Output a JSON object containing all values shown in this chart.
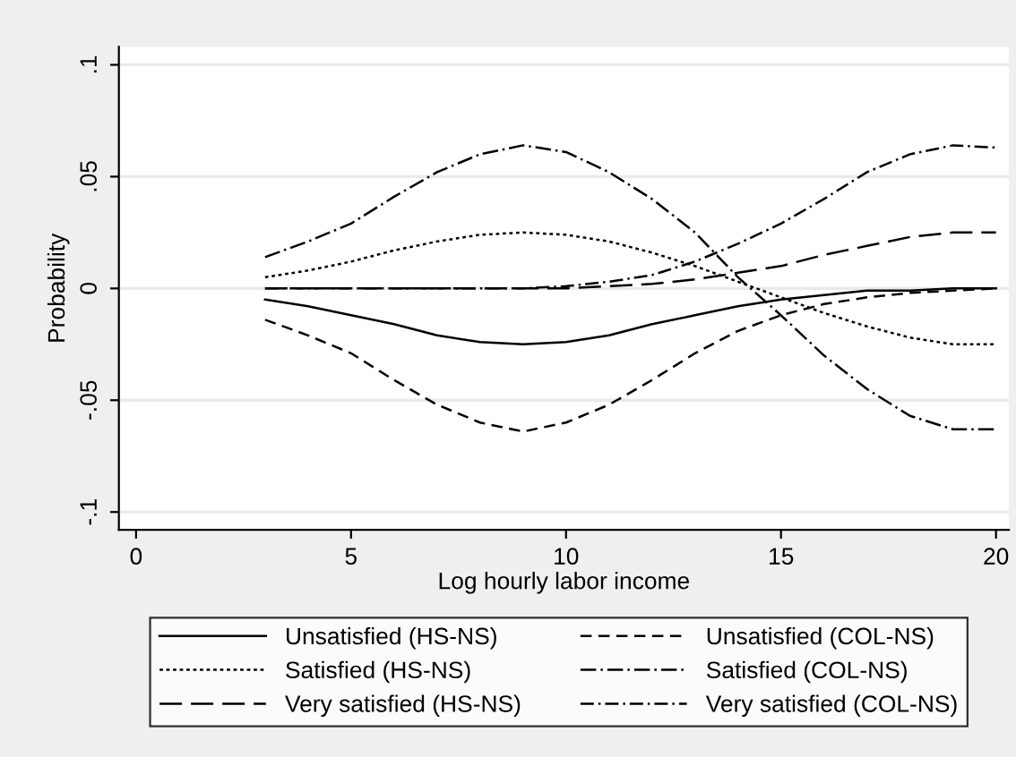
{
  "chart_data": {
    "type": "line",
    "xlabel": "Log hourly labor income",
    "ylabel": "Probability",
    "x": [
      3,
      4,
      5,
      6,
      7,
      8,
      9,
      10,
      11,
      12,
      13,
      14,
      15,
      16,
      17,
      18,
      19,
      20
    ],
    "series": [
      {
        "name": "Unsatisfied (HS-NS)",
        "color": "#000000",
        "line_style": "solid",
        "values": [
          -0.005,
          -0.008,
          -0.012,
          -0.016,
          -0.021,
          -0.024,
          -0.025,
          -0.024,
          -0.021,
          -0.016,
          -0.012,
          -0.008,
          -0.005,
          -0.003,
          -0.001,
          -0.001,
          0,
          0
        ]
      },
      {
        "name": "Unsatisfied (COL-NS)",
        "color": "#000000",
        "line_style": "dashed",
        "values": [
          -0.014,
          -0.021,
          -0.029,
          -0.041,
          -0.052,
          -0.06,
          -0.064,
          -0.06,
          -0.052,
          -0.041,
          -0.029,
          -0.019,
          -0.012,
          -0.007,
          -0.004,
          -0.002,
          -0.001,
          0
        ]
      },
      {
        "name": "Satisfied (HS-NS)",
        "color": "#000000",
        "line_style": "dotted",
        "values": [
          0.005,
          0.008,
          0.012,
          0.017,
          0.021,
          0.024,
          0.025,
          0.024,
          0.021,
          0.016,
          0.01,
          0.003,
          -0.004,
          -0.011,
          -0.017,
          -0.022,
          -0.025,
          -0.025
        ]
      },
      {
        "name": "Satisfied (COL-NS)",
        "color": "#000000",
        "line_style": "longdashdot",
        "values": [
          0.014,
          0.021,
          0.029,
          0.041,
          0.052,
          0.06,
          0.064,
          0.061,
          0.052,
          0.04,
          0.025,
          0.005,
          -0.012,
          -0.03,
          -0.045,
          -0.057,
          -0.063,
          -0.063
        ]
      },
      {
        "name": "Very satisfied (HS-NS)",
        "color": "#000000",
        "line_style": "longdash",
        "values": [
          0,
          0,
          0,
          0,
          0,
          0,
          0,
          0,
          0.001,
          0.002,
          0.004,
          0.007,
          0.01,
          0.015,
          0.019,
          0.023,
          0.025,
          0.025
        ]
      },
      {
        "name": "Very satisfied (COL-NS)",
        "color": "#000000",
        "line_style": "dashdot",
        "values": [
          0,
          0,
          0,
          0,
          0,
          0,
          0,
          0.001,
          0.003,
          0.006,
          0.012,
          0.02,
          0.029,
          0.04,
          0.052,
          0.06,
          0.064,
          0.063
        ]
      }
    ],
    "xlim": [
      -0.4,
      20.3
    ],
    "xticks": [
      0,
      5,
      10,
      15,
      20
    ],
    "ylim": [
      -0.108,
      0.108
    ],
    "yticks": [
      {
        "value": -0.1,
        "label": "-.1"
      },
      {
        "value": -0.05,
        "label": "-.05"
      },
      {
        "value": 0,
        "label": "0"
      },
      {
        "value": 0.05,
        "label": ".05"
      },
      {
        "value": 0.1,
        "label": ".1"
      }
    ],
    "grid": "y",
    "legend": "bottom"
  }
}
